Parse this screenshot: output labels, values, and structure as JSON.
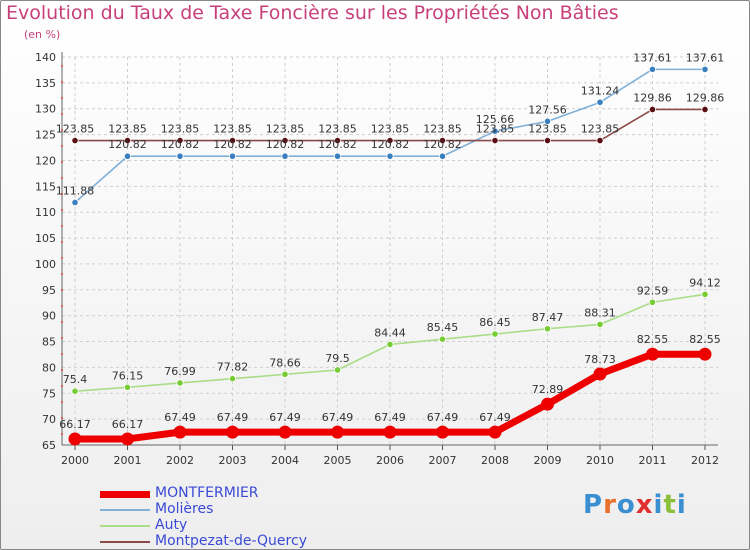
{
  "header": {
    "title": "Evolution du Taux de Taxe Foncière sur les Propriétés Non Bâties",
    "subtitle": "(en %)"
  },
  "logo": {
    "letters": [
      "P",
      "r",
      "o",
      "x",
      "i",
      "t",
      "i"
    ],
    "colors": [
      "#3a8fd0",
      "#e8702a",
      "#3a8fd0",
      "#e03030",
      "#3a8fd0",
      "#8bbf3a",
      "#3a8fd0"
    ]
  },
  "chart_data": {
    "type": "line",
    "title": "Evolution du Taux de Taxe Foncière sur les Propriétés Non Bâties",
    "ylabel": "(en %)",
    "xlabel": "",
    "x": [
      "2000",
      "2001",
      "2002",
      "2003",
      "2004",
      "2005",
      "2006",
      "2007",
      "2008",
      "2009",
      "2010",
      "2011",
      "2012"
    ],
    "ylim": [
      65,
      140
    ],
    "yticks": [
      65,
      70,
      75,
      80,
      85,
      90,
      95,
      100,
      105,
      110,
      115,
      120,
      125,
      130,
      135,
      140
    ],
    "grid": true,
    "series": [
      {
        "name": "MONTFERMIER",
        "color": "#ee0000",
        "values": [
          66.17,
          66.17,
          67.49,
          67.49,
          67.49,
          67.49,
          67.49,
          67.49,
          67.49,
          72.89,
          78.73,
          82.55,
          82.55
        ],
        "labels": [
          "66.17",
          "66.17",
          "67.49",
          "67.49",
          "67.49",
          "67.49",
          "67.49",
          "67.49",
          "67.49",
          "72.89",
          "78.73",
          "82.55",
          "82.55"
        ]
      },
      {
        "name": "Molières",
        "color": "#7fb0d8",
        "marker": "#3a80c0",
        "values": [
          111.88,
          120.82,
          120.82,
          120.82,
          120.82,
          120.82,
          120.82,
          120.82,
          125.66,
          127.56,
          131.24,
          137.61,
          137.61
        ],
        "labels": [
          "111.88",
          "120.82",
          "120.82",
          "120.82",
          "120.82",
          "120.82",
          "120.82",
          "120.82",
          "125.66",
          "127.56",
          "131.24",
          "137.61",
          "137.61"
        ]
      },
      {
        "name": "Auty",
        "color": "#aadd88",
        "marker": "#77cc33",
        "values": [
          75.4,
          76.15,
          76.99,
          77.82,
          78.66,
          79.5,
          84.44,
          85.45,
          86.45,
          87.47,
          88.31,
          92.59,
          94.12
        ],
        "labels": [
          "75.4",
          "76.15",
          "76.99",
          "77.82",
          "78.66",
          "79.5",
          "84.44",
          "85.45",
          "86.45",
          "87.47",
          "88.31",
          "92.59",
          "94.12"
        ]
      },
      {
        "name": "Montpezat-de-Quercy",
        "color": "#8a4a4a",
        "marker": "#5a0f14",
        "values": [
          123.85,
          123.85,
          123.85,
          123.85,
          123.85,
          123.85,
          123.85,
          123.85,
          123.85,
          123.85,
          123.85,
          129.86,
          129.86
        ],
        "labels": [
          "123.85",
          "123.85",
          "123.85",
          "123.85",
          "123.85",
          "123.85",
          "123.85",
          "123.85",
          "123.85",
          "123.85",
          "123.85",
          "129.86",
          "129.86"
        ]
      }
    ]
  }
}
